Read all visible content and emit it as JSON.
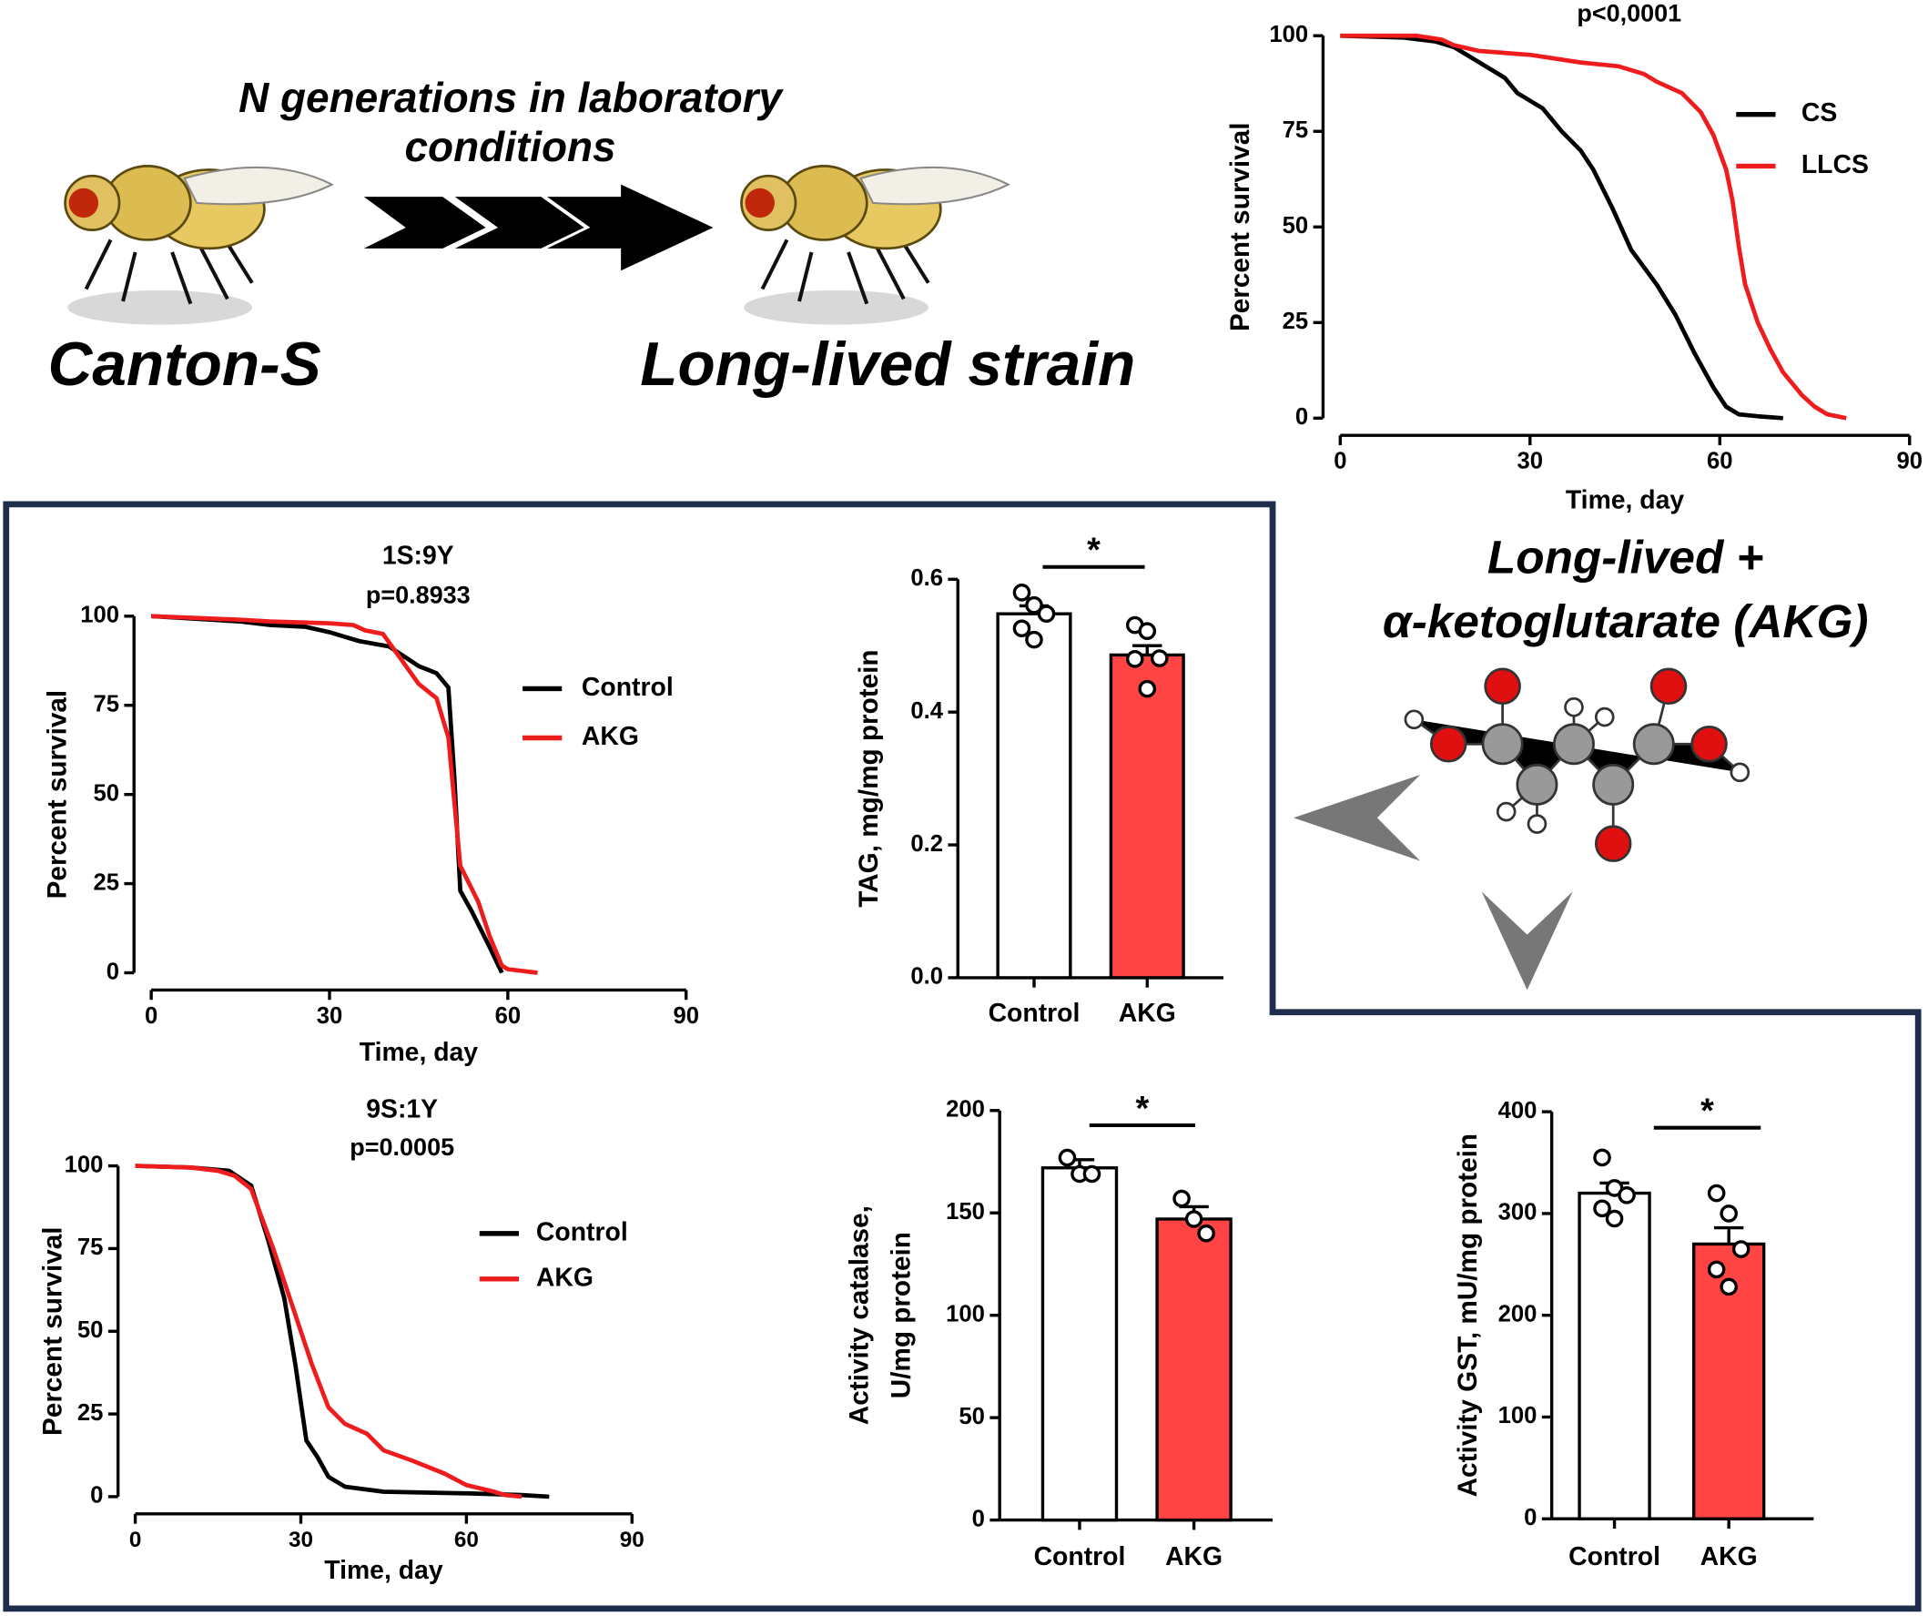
{
  "diagram": {
    "arrow_label": [
      "N generations in laboratory",
      "conditions"
    ],
    "start_strain": "Canton-S",
    "end_strain": "Long-lived strain",
    "treatment": [
      "Long-lived +",
      "α-ketoglutarate (AKG)"
    ]
  },
  "chart_data": [
    {
      "type": "line",
      "annotation": "p<0,0001",
      "xlabel": "Time, day",
      "ylabel": "Percent survival",
      "xlim": [
        0,
        90
      ],
      "xticks": [
        0,
        30,
        60,
        90
      ],
      "ylim": [
        0,
        100
      ],
      "yticks": [
        0,
        25,
        50,
        75,
        100
      ],
      "series": [
        {
          "name": "CS",
          "color": "#000000",
          "x": [
            0,
            10,
            15,
            18,
            22,
            26,
            28,
            32,
            35,
            38,
            40,
            43,
            46,
            50,
            53,
            56,
            59,
            61,
            63,
            66,
            70
          ],
          "values": [
            100,
            99.5,
            98.5,
            97,
            93,
            89,
            85,
            81,
            75,
            70,
            65,
            55,
            44,
            35,
            27,
            17,
            8,
            3,
            1,
            0.5,
            0
          ]
        },
        {
          "name": "LLCS",
          "color": "#ee1c1c",
          "x": [
            0,
            12,
            16,
            18,
            22,
            30,
            38,
            44,
            48,
            50,
            54,
            57,
            59,
            61,
            62,
            63,
            64,
            66,
            68,
            70,
            73,
            75,
            77,
            80
          ],
          "values": [
            100,
            100,
            99,
            97.5,
            96,
            95,
            93,
            92,
            90,
            88,
            85,
            80,
            74,
            65,
            57,
            45,
            35,
            25,
            18,
            12,
            6,
            3,
            1,
            0
          ]
        }
      ]
    },
    {
      "type": "line",
      "title": "1S:9Y",
      "annotation": "p=0.8933",
      "xlabel": "Time, day",
      "ylabel": "Percent survival",
      "xlim": [
        0,
        90
      ],
      "xticks": [
        0,
        30,
        60,
        90
      ],
      "ylim": [
        0,
        100
      ],
      "yticks": [
        0,
        25,
        50,
        75,
        100
      ],
      "series": [
        {
          "name": "Control",
          "color": "#000000",
          "x": [
            0,
            10,
            15,
            20,
            26,
            30,
            35,
            40,
            45,
            48,
            49,
            50,
            51,
            52,
            54,
            57,
            59
          ],
          "values": [
            100,
            99,
            98.5,
            97.5,
            97,
            95.5,
            93,
            91.5,
            86,
            84,
            82,
            80,
            55,
            23,
            17,
            7,
            0
          ]
        },
        {
          "name": "AKG",
          "color": "#ee1c1c",
          "x": [
            0,
            15,
            20,
            30,
            34,
            36,
            39,
            42,
            45,
            48,
            50,
            51,
            52,
            55,
            57,
            59,
            60,
            65
          ],
          "values": [
            100,
            99,
            98.5,
            98,
            97.5,
            96,
            95,
            88,
            81,
            77,
            66,
            48,
            30,
            20,
            10,
            2,
            1,
            0
          ]
        }
      ]
    },
    {
      "type": "line",
      "title": "9S:1Y",
      "annotation": "p=0.0005",
      "xlabel": "Time, day",
      "ylabel": "Percent survival",
      "xlim": [
        0,
        90
      ],
      "xticks": [
        0,
        30,
        60,
        90
      ],
      "ylim": [
        0,
        100
      ],
      "yticks": [
        0,
        25,
        50,
        75,
        100
      ],
      "series": [
        {
          "name": "Control",
          "color": "#000000",
          "x": [
            0,
            10,
            17,
            21,
            24,
            27,
            29,
            31,
            33,
            35,
            38,
            45,
            60,
            70,
            75
          ],
          "values": [
            100,
            99.5,
            98.5,
            94,
            78,
            60,
            40,
            17,
            12,
            6,
            3,
            1.5,
            1,
            0.5,
            0
          ]
        },
        {
          "name": "AKG",
          "color": "#ee1c1c",
          "x": [
            0,
            10,
            15,
            18,
            21,
            25,
            29,
            32,
            35,
            38,
            42,
            45,
            50,
            56,
            60,
            65,
            67,
            70
          ],
          "values": [
            100,
            99.5,
            98.5,
            97,
            93,
            75,
            55,
            40,
            27,
            22,
            19,
            14,
            11,
            7,
            3.5,
            1.5,
            0.5,
            0
          ]
        }
      ]
    },
    {
      "type": "bar",
      "annotation": "*",
      "ylabel": [
        "TAG, mg/mg protein"
      ],
      "categories": [
        "Control",
        "AKG"
      ],
      "values": [
        0.548,
        0.486
      ],
      "errors": [
        0.012,
        0.014
      ],
      "colors": [
        "#ffffff",
        "#ff4444"
      ],
      "points": [
        [
          0.58,
          0.561,
          0.548,
          0.526,
          0.509
        ],
        [
          0.531,
          0.522,
          0.481,
          0.48,
          0.435
        ]
      ],
      "ylim": [
        0,
        0.6
      ],
      "yticks": [
        {
          "value": 0,
          "label": "0.0"
        },
        0.2,
        0.4,
        0.6
      ]
    },
    {
      "type": "bar",
      "annotation": "*",
      "ylabel": [
        "Activity catalase,",
        "U/mg protein"
      ],
      "categories": [
        "Control",
        "AKG"
      ],
      "values": [
        172,
        147
      ],
      "errors": [
        4,
        6
      ],
      "colors": [
        "#ffffff",
        "#ff4444"
      ],
      "points": [
        [
          177,
          169,
          169
        ],
        [
          157,
          147,
          140
        ]
      ],
      "ylim": [
        0,
        200
      ],
      "yticks": [
        0,
        50,
        100,
        150,
        200
      ]
    },
    {
      "type": "bar",
      "annotation": "*",
      "ylabel": [
        "Activity GST, mU/mg protein"
      ],
      "categories": [
        "Control",
        "AKG"
      ],
      "values": [
        320,
        270
      ],
      "errors": [
        10,
        16
      ],
      "colors": [
        "#ffffff",
        "#ff4444"
      ],
      "points": [
        [
          355,
          325,
          318,
          305,
          295
        ],
        [
          320,
          300,
          265,
          245,
          228
        ]
      ],
      "ylim": [
        0,
        400
      ],
      "yticks": [
        0,
        100,
        200,
        300,
        400
      ]
    }
  ]
}
